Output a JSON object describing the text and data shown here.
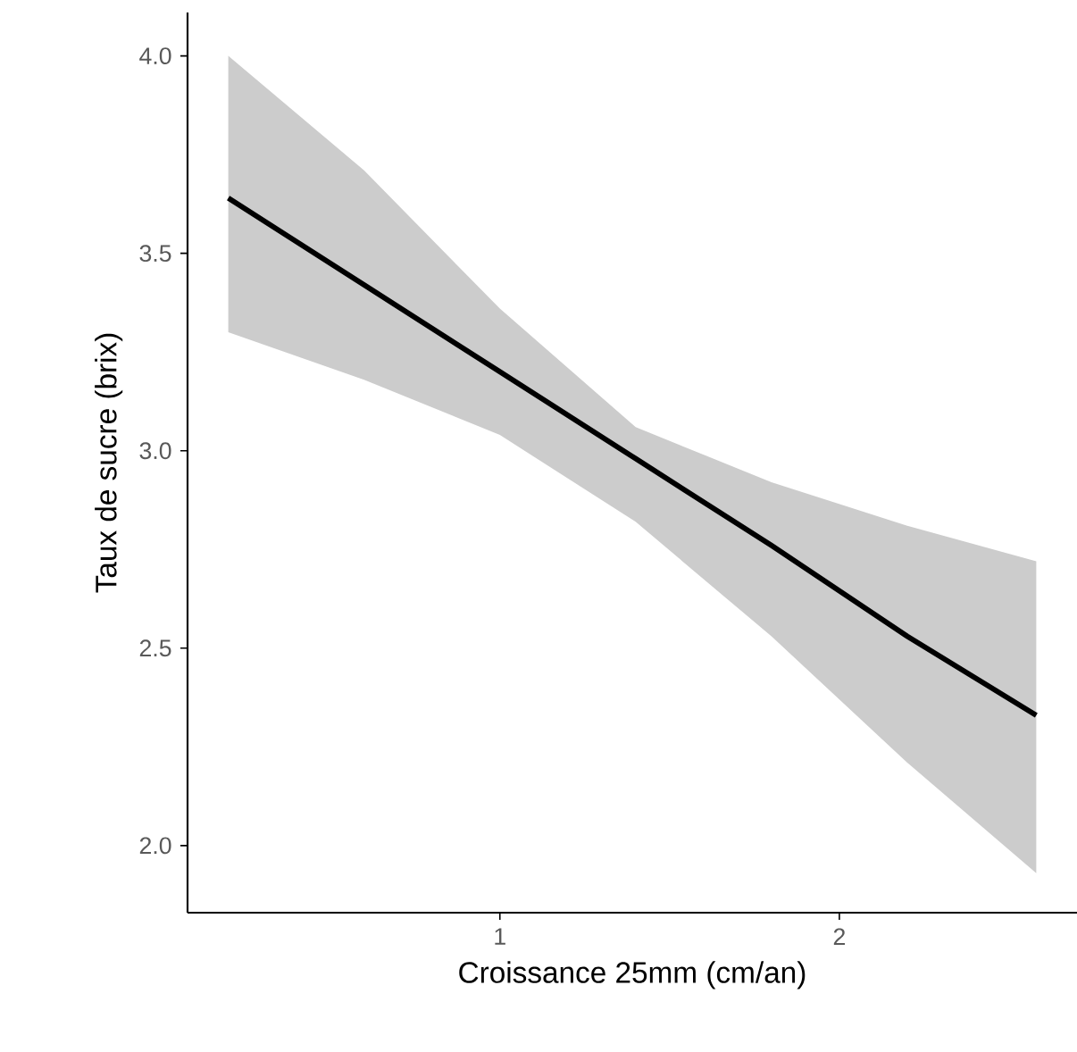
{
  "chart_data": {
    "type": "line",
    "xlabel": "Croissance 25mm (cm/an)",
    "ylabel": "Taux de sucre (brix)",
    "xlim": [
      0.08,
      2.7
    ],
    "xticks": [
      1,
      2
    ],
    "ylim": [
      1.83,
      4.11
    ],
    "yticks": [
      {
        "value": 2,
        "label": "2.0"
      },
      {
        "value": 2.5,
        "label": "2.5"
      },
      {
        "value": 3,
        "label": "3.0"
      },
      {
        "value": 3.5,
        "label": "3.5"
      },
      {
        "value": 4,
        "label": "4.0"
      }
    ],
    "grid": false,
    "marker": "none",
    "line_style": "solid",
    "series": [
      {
        "color": "#000000",
        "x": [
          0.2,
          0.6,
          1.0,
          1.4,
          1.8,
          2.2,
          2.58
        ],
        "values": [
          3.64,
          3.42,
          3.2,
          2.98,
          2.76,
          2.53,
          2.33
        ],
        "upper": [
          4.0,
          3.71,
          3.36,
          3.06,
          2.92,
          2.81,
          2.72
        ],
        "lower": [
          3.3,
          3.18,
          3.04,
          2.82,
          2.53,
          2.21,
          1.93
        ]
      }
    ]
  }
}
